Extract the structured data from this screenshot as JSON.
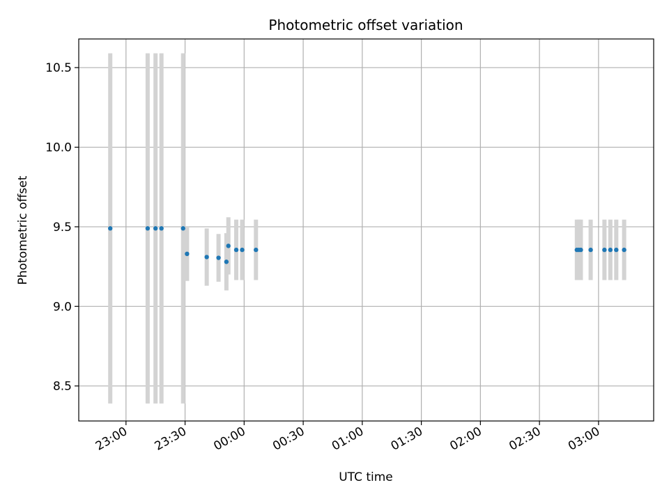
{
  "chart_data": {
    "type": "scatter",
    "title": "Photometric offset variation",
    "xlabel": "UTC time",
    "ylabel": "Photometric offset",
    "x_unit": "UTC time of night (times after midnight shown as 24:00+)",
    "x_ticks": [
      "23:00",
      "23:30",
      "00:00",
      "00:30",
      "01:00",
      "01:30",
      "02:00",
      "02:30",
      "03:00"
    ],
    "y_ticks": [
      "8.5",
      "9.0",
      "9.5",
      "10.0",
      "10.5"
    ],
    "xlim": [
      "22:36",
      "27:28"
    ],
    "ylim": [
      8.28,
      10.68
    ],
    "grid": true,
    "point_color": "#1f77b4",
    "errorbar_color": "#d3d3d3",
    "series": [
      {
        "points": [
          {
            "x": "22:52",
            "y": 9.49,
            "err": 1.1
          },
          {
            "x": "23:11",
            "y": 9.49,
            "err": 1.1
          },
          {
            "x": "23:15",
            "y": 9.49,
            "err": 1.1
          },
          {
            "x": "23:18",
            "y": 9.49,
            "err": 1.1
          },
          {
            "x": "23:29",
            "y": 9.49,
            "err": 1.1
          },
          {
            "x": "23:31",
            "y": 9.33,
            "err": 0.17
          },
          {
            "x": "23:41",
            "y": 9.31,
            "err": 0.18
          },
          {
            "x": "23:47",
            "y": 9.305,
            "err": 0.15
          },
          {
            "x": "23:51",
            "y": 9.28,
            "err": 0.18
          },
          {
            "x": "23:52",
            "y": 9.38,
            "err": 0.18
          },
          {
            "x": "23:56",
            "y": 9.355,
            "err": 0.19
          },
          {
            "x": "23:59",
            "y": 9.355,
            "err": 0.19
          },
          {
            "x": "24:06",
            "y": 9.355,
            "err": 0.19
          },
          {
            "x": "26:49",
            "y": 9.355,
            "err": 0.19
          },
          {
            "x": "26:50",
            "y": 9.355,
            "err": 0.19
          },
          {
            "x": "26:51",
            "y": 9.355,
            "err": 0.19
          },
          {
            "x": "26:56",
            "y": 9.355,
            "err": 0.19
          },
          {
            "x": "27:03",
            "y": 9.355,
            "err": 0.19
          },
          {
            "x": "27:06",
            "y": 9.355,
            "err": 0.19
          },
          {
            "x": "27:09",
            "y": 9.355,
            "err": 0.19
          },
          {
            "x": "27:13",
            "y": 9.355,
            "err": 0.19
          }
        ]
      }
    ]
  }
}
